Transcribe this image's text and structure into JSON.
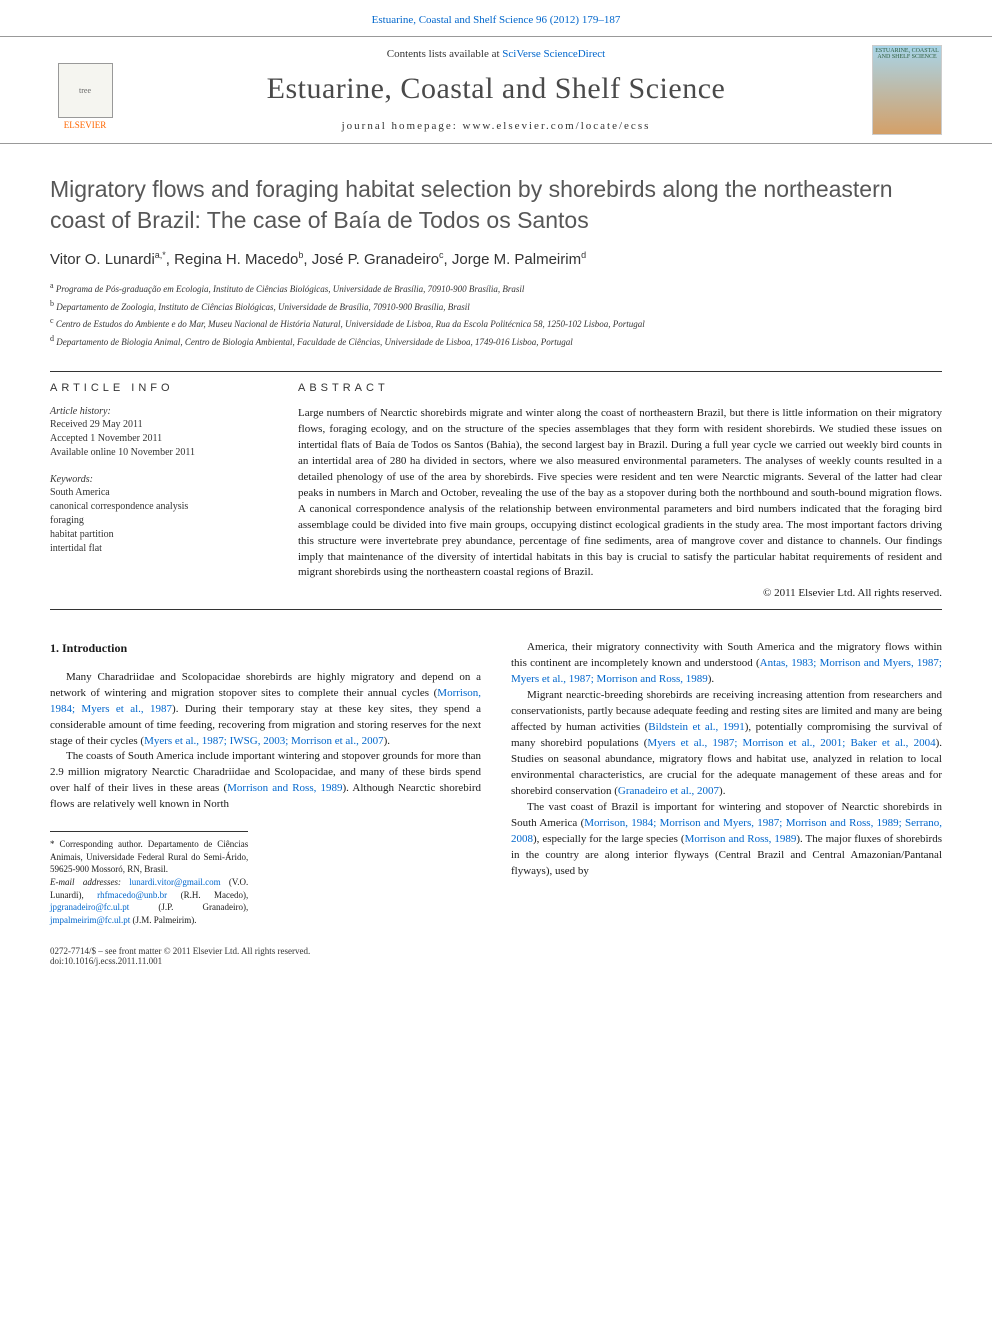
{
  "header": {
    "issue_link": "Estuarine, Coastal and Shelf Science 96 (2012) 179–187",
    "contents_prefix": "Contents lists available at ",
    "contents_link": "SciVerse ScienceDirect",
    "journal_title": "Estuarine, Coastal and Shelf Science",
    "homepage_label": "journal homepage: ",
    "homepage_url": "www.elsevier.com/locate/ecss",
    "elsevier_label": "ELSEVIER",
    "tree_alt": "tree",
    "cover_text": "ESTUARINE, COASTAL AND SHELF SCIENCE"
  },
  "article": {
    "title": "Migratory flows and foraging habitat selection by shorebirds along the northeastern coast of Brazil: The case of Baía de Todos os Santos",
    "authors_html": "Vitor O. Lunardi",
    "author_list": [
      {
        "name": "Vitor O. Lunardi",
        "sup": "a,*"
      },
      {
        "name": "Regina H. Macedo",
        "sup": "b"
      },
      {
        "name": "José P. Granadeiro",
        "sup": "c"
      },
      {
        "name": "Jorge M. Palmeirim",
        "sup": "d"
      }
    ],
    "affiliations": [
      {
        "sup": "a",
        "text": "Programa de Pós-graduação em Ecologia, Instituto de Ciências Biológicas, Universidade de Brasília, 70910-900 Brasília, Brasil"
      },
      {
        "sup": "b",
        "text": "Departamento de Zoologia, Instituto de Ciências Biológicas, Universidade de Brasília, 70910-900 Brasília, Brasil"
      },
      {
        "sup": "c",
        "text": "Centro de Estudos do Ambiente e do Mar, Museu Nacional de História Natural, Universidade de Lisboa, Rua da Escola Politécnica 58, 1250-102 Lisboa, Portugal"
      },
      {
        "sup": "d",
        "text": "Departamento de Biologia Animal, Centro de Biologia Ambiental, Faculdade de Ciências, Universidade de Lisboa, 1749-016 Lisboa, Portugal"
      }
    ]
  },
  "info": {
    "heading": "ARTICLE INFO",
    "history_label": "Article history:",
    "history": "Received 29 May 2011\nAccepted 1 November 2011\nAvailable online 10 November 2011",
    "keywords_label": "Keywords:",
    "keywords": "South America\ncanonical correspondence analysis\nforaging\nhabitat partition\nintertidal flat"
  },
  "abstract": {
    "heading": "ABSTRACT",
    "text": "Large numbers of Nearctic shorebirds migrate and winter along the coast of northeastern Brazil, but there is little information on their migratory flows, foraging ecology, and on the structure of the species assemblages that they form with resident shorebirds. We studied these issues on intertidal flats of Baía de Todos os Santos (Bahia), the second largest bay in Brazil. During a full year cycle we carried out weekly bird counts in an intertidal area of 280 ha divided in sectors, where we also measured environmental parameters. The analyses of weekly counts resulted in a detailed phenology of use of the area by shorebirds. Five species were resident and ten were Nearctic migrants. Several of the latter had clear peaks in numbers in March and October, revealing the use of the bay as a stopover during both the northbound and south-bound migration flows. A canonical correspondence analysis of the relationship between environmental parameters and bird numbers indicated that the foraging bird assemblage could be divided into five main groups, occupying distinct ecological gradients in the study area. The most important factors driving this structure were invertebrate prey abundance, percentage of fine sediments, area of mangrove cover and distance to channels. Our findings imply that maintenance of the diversity of intertidal habitats in this bay is crucial to satisfy the particular habitat requirements of resident and migrant shorebirds using the northeastern coastal regions of Brazil.",
    "copyright": "© 2011 Elsevier Ltd. All rights reserved."
  },
  "body": {
    "section_heading": "1. Introduction",
    "left_paras": [
      "Many Charadriidae and Scolopacidae shorebirds are highly migratory and depend on a network of wintering and migration stopover sites to complete their annual cycles (Morrison, 1984; Myers et al., 1987). During their temporary stay at these key sites, they spend a considerable amount of time feeding, recovering from migration and storing reserves for the next stage of their cycles (Myers et al., 1987; IWSG, 2003; Morrison et al., 2007).",
      "The coasts of South America include important wintering and stopover grounds for more than 2.9 million migratory Nearctic Charadriidae and Scolopacidae, and many of these birds spend over half of their lives in these areas (Morrison and Ross, 1989). Although Nearctic shorebird flows are relatively well known in North"
    ],
    "right_paras": [
      "America, their migratory connectivity with South America and the migratory flows within this continent are incompletely known and understood (Antas, 1983; Morrison and Myers, 1987; Myers et al., 1987; Morrison and Ross, 1989).",
      "Migrant nearctic-breeding shorebirds are receiving increasing attention from researchers and conservationists, partly because adequate feeding and resting sites are limited and many are being affected by human activities (Bildstein et al., 1991), potentially compromising the survival of many shorebird populations (Myers et al., 1987; Morrison et al., 2001; Baker et al., 2004). Studies on seasonal abundance, migratory flows and habitat use, analyzed in relation to local environmental characteristics, are crucial for the adequate management of these areas and for shorebird conservation (Granadeiro et al., 2007).",
      "The vast coast of Brazil is important for wintering and stopover of Nearctic shorebirds in South America (Morrison, 1984; Morrison and Myers, 1987; Morrison and Ross, 1989; Serrano, 2008), especially for the large species (Morrison and Ross, 1989). The major fluxes of shorebirds in the country are along interior flyways (Central Brazil and Central Amazonian/Pantanal flyways), used by"
    ]
  },
  "footnotes": {
    "corresp_label": "* Corresponding author. Departamento de Ciências Animais, Universidade Federal Rural do Semi-Árido, 59625-900 Mossoró, RN, Brasil.",
    "email_label": "E-mail addresses: ",
    "emails": [
      {
        "addr": "lunardi.vitor@gmail.com",
        "who": "(V.O. Lunardi)"
      },
      {
        "addr": "rhfmacedo@unb.br",
        "who": "(R.H. Macedo)"
      },
      {
        "addr": "jpgranadeiro@fc.ul.pt",
        "who": "(J.P. Granadeiro)"
      },
      {
        "addr": "jmpalmeirim@fc.ul.pt",
        "who": "(J.M. Palmeirim)."
      }
    ]
  },
  "footer": {
    "issn_line": "0272-7714/$ – see front matter © 2011 Elsevier Ltd. All rights reserved.",
    "doi": "doi:10.1016/j.ecss.2011.11.001"
  },
  "colors": {
    "link": "#0066cc",
    "text": "#1a1a1a",
    "title_gray": "#575757",
    "rule": "#333333",
    "elsevier_orange": "#ff6600"
  }
}
